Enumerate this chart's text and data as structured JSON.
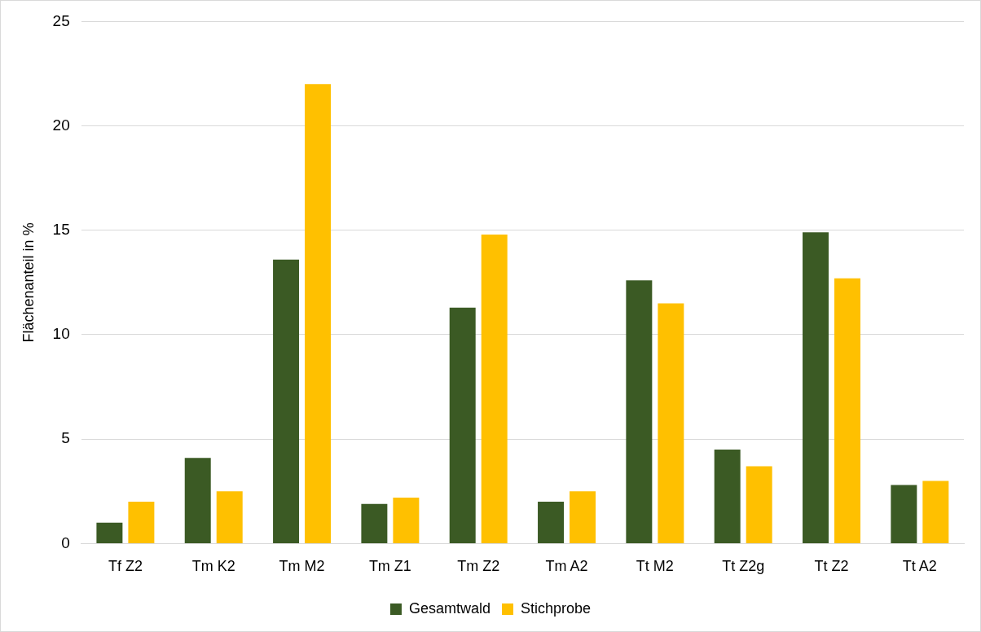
{
  "chart_data": {
    "type": "bar",
    "ylabel": "Flächenanteil in %",
    "categories": [
      "Tf Z2",
      "Tm K2",
      "Tm M2",
      "Tm Z1",
      "Tm Z2",
      "Tm A2",
      "Tt M2",
      "Tt Z2g",
      "Tt Z2",
      "Tt A2"
    ],
    "series": [
      {
        "name": "Gesamtwald",
        "color": "#3b5a24",
        "values": [
          1.0,
          4.1,
          13.6,
          1.9,
          11.3,
          2.0,
          12.6,
          4.5,
          14.9,
          2.8
        ]
      },
      {
        "name": "Stichprobe",
        "color": "#ffc000",
        "values": [
          2.0,
          2.5,
          22.0,
          2.2,
          14.8,
          2.5,
          11.5,
          3.7,
          12.7,
          3.0
        ]
      }
    ],
    "ylim": [
      0,
      25
    ],
    "yticks": [
      0,
      5,
      10,
      15,
      20,
      25
    ],
    "grid": "y",
    "legend": "bottom"
  }
}
